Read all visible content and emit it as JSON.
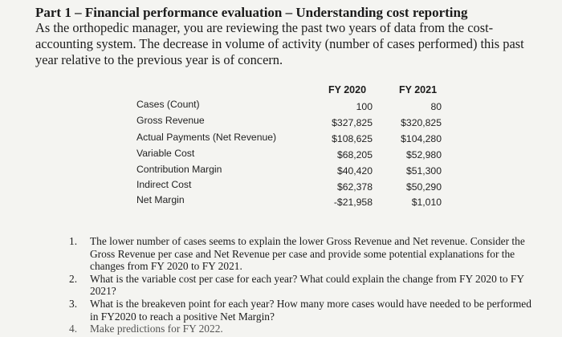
{
  "header": {
    "title": "Part 1 – Financial performance evaluation – Understanding cost reporting",
    "intro": "As the orthopedic manager, you are reviewing the past two years of data from the cost-accounting system. The decrease in volume of activity (number of cases performed) this past year relative to the previous year is of concern."
  },
  "table": {
    "columns": [
      "FY 2020",
      "FY 2021"
    ],
    "rows": [
      {
        "label": "Cases (Count)",
        "fy2020": "100",
        "fy2021": "80"
      },
      {
        "label": "Gross Revenue",
        "fy2020": "$327,825",
        "fy2021": "$320,825"
      },
      {
        "label": "Actual Payments (Net Revenue)",
        "fy2020": "$108,625",
        "fy2021": "$104,280"
      },
      {
        "label": "Variable Cost",
        "fy2020": "$68,205",
        "fy2021": "$52,980"
      },
      {
        "label": "Contribution Margin",
        "fy2020": "$40,420",
        "fy2021": "$51,300"
      },
      {
        "label": "Indirect Cost",
        "fy2020": "$62,378",
        "fy2021": "$50,290"
      },
      {
        "label": "Net Margin",
        "fy2020": "-$21,958",
        "fy2021": "$1,010"
      }
    ]
  },
  "questions": [
    {
      "num": "1.",
      "text": "The lower number of cases seems to explain the lower Gross Revenue and Net revenue. Consider the Gross Revenue per case and Net Revenue per case and provide some potential explanations for the changes from FY 2020 to FY 2021."
    },
    {
      "num": "2.",
      "text": "What is the variable cost per case for each year? What could explain the change from FY 2020 to FY 2021?"
    },
    {
      "num": "3.",
      "text": "What is the breakeven point for each year? How many more cases would have needed to be performed in FY2020 to reach a positive Net Margin?"
    },
    {
      "num": "4.",
      "text": "Make predictions for FY 2022."
    }
  ]
}
